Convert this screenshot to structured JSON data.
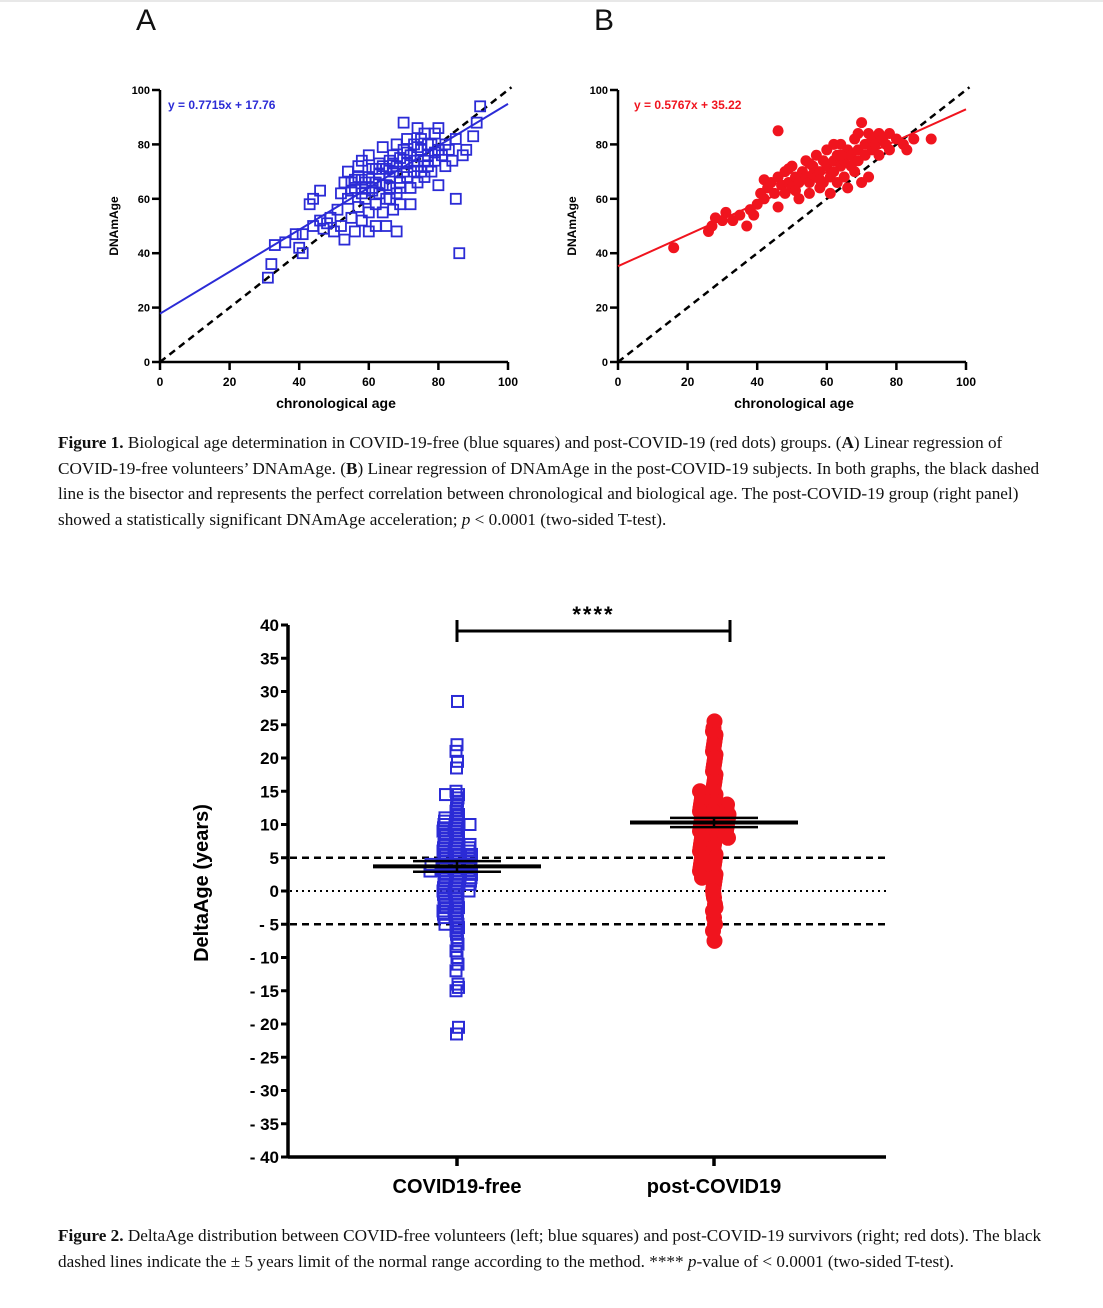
{
  "figure1": {
    "caption": {
      "label": "Figure 1.",
      "part1": " Biological age determination in COVID-19-free (blue squares) and post-COVID-19 (red dots) groups. (",
      "a": "A",
      "part2": ") Linear regression of COVID-19-free volunteers’ DNAmAge. (",
      "b": "B",
      "part3": ") Linear regression of DNAmAge in the post-COVID-19 subjects. In both graphs, the black dashed line is the bisector and represents the perfect correlation between chronological and biological age. The post-COVID-19 group (right panel) showed a statistically significant DNAmAge acceleration; ",
      "p": "p",
      "part4": " < 0.0001 (two-sided T-test)."
    }
  },
  "figure2": {
    "caption": {
      "label": "Figure 2.",
      "part1": " DeltaAge distribution between COVID-free volunteers (left; blue squares) and post-COVID-19 survivors (right; red dots). The black dashed lines indicate the ± 5 years limit of the normal range according to the method. **** ",
      "p": "p",
      "part2": "-value of < 0.0001 (two-sided T-test)."
    }
  },
  "colors": {
    "blue": "#2b2bd6",
    "red": "#f0141e",
    "black": "#000000"
  },
  "chart_data": [
    {
      "type": "scatter",
      "panel_label": "A",
      "xlabel": "chronological age",
      "ylabel": "DNAmAge",
      "xlim": [
        0,
        100
      ],
      "ylim": [
        0,
        100
      ],
      "xticks": [
        "0",
        "20",
        "40",
        "60",
        "80",
        "100"
      ],
      "yticks": [
        "0",
        "20",
        "40",
        "60",
        "80",
        "100"
      ],
      "marker": "open-square",
      "color": "#2b2bd6",
      "regression": {
        "label": "y = 0.7715x + 17.76",
        "slope": 0.7715,
        "intercept": 17.76
      },
      "bisector": {
        "slope": 1,
        "intercept": 0,
        "style": "dashed"
      },
      "points": [
        [
          31,
          31
        ],
        [
          32,
          36
        ],
        [
          33,
          43
        ],
        [
          36,
          44
        ],
        [
          39,
          47
        ],
        [
          40,
          42
        ],
        [
          41,
          40
        ],
        [
          41,
          47
        ],
        [
          43,
          58
        ],
        [
          44,
          60
        ],
        [
          44,
          50
        ],
        [
          46,
          52
        ],
        [
          46,
          63
        ],
        [
          47,
          49
        ],
        [
          48,
          51
        ],
        [
          49,
          53
        ],
        [
          50,
          48
        ],
        [
          51,
          56
        ],
        [
          52,
          50
        ],
        [
          52,
          62
        ],
        [
          53,
          66
        ],
        [
          53,
          45
        ],
        [
          54,
          70
        ],
        [
          54,
          60
        ],
        [
          55,
          53
        ],
        [
          55,
          66
        ],
        [
          56,
          48
        ],
        [
          56,
          64
        ],
        [
          57,
          72
        ],
        [
          57,
          57
        ],
        [
          57,
          68
        ],
        [
          58,
          62
        ],
        [
          58,
          52
        ],
        [
          58,
          74
        ],
        [
          59,
          66
        ],
        [
          59,
          60
        ],
        [
          60,
          55
        ],
        [
          60,
          68
        ],
        [
          60,
          76
        ],
        [
          60,
          48
        ],
        [
          61,
          64
        ],
        [
          61,
          71
        ],
        [
          62,
          58
        ],
        [
          62,
          66
        ],
        [
          62,
          50
        ],
        [
          63,
          62
        ],
        [
          63,
          69
        ],
        [
          63,
          73
        ],
        [
          64,
          55
        ],
        [
          64,
          65
        ],
        [
          64,
          79
        ],
        [
          65,
          71
        ],
        [
          65,
          60
        ],
        [
          65,
          50
        ],
        [
          66,
          68
        ],
        [
          66,
          74
        ],
        [
          66,
          64
        ],
        [
          67,
          76
        ],
        [
          67,
          56
        ],
        [
          67,
          70
        ],
        [
          68,
          62
        ],
        [
          68,
          72
        ],
        [
          68,
          80
        ],
        [
          68,
          48
        ],
        [
          69,
          66
        ],
        [
          69,
          75
        ],
        [
          69,
          58
        ],
        [
          70,
          70
        ],
        [
          70,
          78
        ],
        [
          70,
          88
        ],
        [
          71,
          73
        ],
        [
          71,
          68
        ],
        [
          71,
          82
        ],
        [
          72,
          64
        ],
        [
          72,
          76
        ],
        [
          72,
          58
        ],
        [
          73,
          70
        ],
        [
          73,
          80
        ],
        [
          73,
          74
        ],
        [
          74,
          72
        ],
        [
          74,
          86
        ],
        [
          74,
          66
        ],
        [
          75,
          78
        ],
        [
          75,
          70
        ],
        [
          75,
          82
        ],
        [
          76,
          74
        ],
        [
          76,
          84
        ],
        [
          76,
          68
        ],
        [
          77,
          76
        ],
        [
          77,
          72
        ],
        [
          78,
          80
        ],
        [
          78,
          70
        ],
        [
          79,
          74
        ],
        [
          79,
          84
        ],
        [
          80,
          78
        ],
        [
          80,
          65
        ],
        [
          80,
          86
        ],
        [
          81,
          76
        ],
        [
          82,
          80
        ],
        [
          82,
          72
        ],
        [
          83,
          78
        ],
        [
          84,
          74
        ],
        [
          85,
          82
        ],
        [
          85,
          60
        ],
        [
          86,
          40
        ],
        [
          87,
          76
        ],
        [
          88,
          78
        ],
        [
          90,
          83
        ],
        [
          91,
          88
        ],
        [
          92,
          94
        ],
        [
          55,
          63
        ],
        [
          58,
          67
        ],
        [
          61,
          63
        ],
        [
          66,
          60
        ],
        [
          69,
          64
        ],
        [
          64,
          72
        ],
        [
          62,
          71
        ],
        [
          59,
          64
        ],
        [
          56,
          67
        ],
        [
          74,
          79
        ],
        [
          77,
          80
        ],
        [
          79,
          77
        ],
        [
          71,
          77
        ],
        [
          67,
          73
        ],
        [
          65,
          65
        ]
      ]
    },
    {
      "type": "scatter",
      "panel_label": "B",
      "xlabel": "chronological age",
      "ylabel": "DNAmAge",
      "xlim": [
        0,
        100
      ],
      "ylim": [
        0,
        100
      ],
      "xticks": [
        "0",
        "20",
        "40",
        "60",
        "80",
        "100"
      ],
      "yticks": [
        "0",
        "20",
        "40",
        "60",
        "80",
        "100"
      ],
      "marker": "filled-circle",
      "color": "#f0141e",
      "regression": {
        "label": "y = 0.5767x + 35.22",
        "slope": 0.5767,
        "intercept": 35.22
      },
      "bisector": {
        "slope": 1,
        "intercept": 0,
        "style": "dashed"
      },
      "points": [
        [
          16,
          42
        ],
        [
          26,
          48
        ],
        [
          27,
          50
        ],
        [
          28,
          53
        ],
        [
          30,
          52
        ],
        [
          31,
          55
        ],
        [
          33,
          52
        ],
        [
          35,
          54
        ],
        [
          37,
          50
        ],
        [
          38,
          56
        ],
        [
          39,
          54
        ],
        [
          40,
          58
        ],
        [
          41,
          62
        ],
        [
          42,
          60
        ],
        [
          42,
          67
        ],
        [
          43,
          64
        ],
        [
          44,
          66
        ],
        [
          45,
          62
        ],
        [
          46,
          68
        ],
        [
          46,
          57
        ],
        [
          47,
          65
        ],
        [
          48,
          70
        ],
        [
          48,
          62
        ],
        [
          49,
          66
        ],
        [
          50,
          64
        ],
        [
          50,
          72
        ],
        [
          51,
          68
        ],
        [
          52,
          66
        ],
        [
          52,
          60
        ],
        [
          53,
          70
        ],
        [
          54,
          68
        ],
        [
          54,
          74
        ],
        [
          55,
          66
        ],
        [
          55,
          62
        ],
        [
          56,
          72
        ],
        [
          56,
          69
        ],
        [
          57,
          68
        ],
        [
          57,
          76
        ],
        [
          58,
          70
        ],
        [
          58,
          64
        ],
        [
          59,
          74
        ],
        [
          59,
          66
        ],
        [
          60,
          72
        ],
        [
          60,
          78
        ],
        [
          61,
          68
        ],
        [
          61,
          62
        ],
        [
          62,
          74
        ],
        [
          62,
          70
        ],
        [
          63,
          76
        ],
        [
          63,
          66
        ],
        [
          64,
          72
        ],
        [
          64,
          80
        ],
        [
          65,
          74
        ],
        [
          65,
          68
        ],
        [
          66,
          78
        ],
        [
          66,
          64
        ],
        [
          67,
          76
        ],
        [
          67,
          72
        ],
        [
          68,
          82
        ],
        [
          68,
          70
        ],
        [
          69,
          78
        ],
        [
          69,
          74
        ],
        [
          70,
          88
        ],
        [
          70,
          66
        ],
        [
          71,
          80
        ],
        [
          71,
          76
        ],
        [
          72,
          84
        ],
        [
          72,
          68
        ],
        [
          73,
          82
        ],
        [
          73,
          78
        ],
        [
          74,
          80
        ],
        [
          75,
          76
        ],
        [
          75,
          84
        ],
        [
          76,
          82
        ],
        [
          77,
          80
        ],
        [
          78,
          84
        ],
        [
          78,
          78
        ],
        [
          80,
          82
        ],
        [
          82,
          80
        ],
        [
          83,
          78
        ],
        [
          85,
          82
        ],
        [
          90,
          82
        ],
        [
          46,
          85
        ],
        [
          49,
          71
        ],
        [
          55,
          73
        ],
        [
          51,
          63
        ],
        [
          58,
          67
        ],
        [
          62,
          80
        ],
        [
          64,
          76
        ],
        [
          69,
          84
        ]
      ]
    },
    {
      "type": "scatter",
      "subtype": "dot-plot",
      "ylabel": "DeltaAge (years)",
      "categories": [
        "COVID19-free",
        "post-COVID19"
      ],
      "ylim": [
        -40,
        40
      ],
      "yticks": [
        "40",
        "35",
        "30",
        "25",
        "20",
        "15",
        "10",
        "5",
        "0",
        "- 5",
        "- 10",
        "- 15",
        "- 20",
        "- 25",
        "- 30",
        "- 35",
        "- 40"
      ],
      "reference_lines": [
        {
          "y": 5,
          "style": "dashed"
        },
        {
          "y": 0,
          "style": "dotted"
        },
        {
          "y": -5,
          "style": "dashed"
        }
      ],
      "significance": {
        "label": "****",
        "between": [
          "COVID19-free",
          "post-COVID19"
        ]
      },
      "series": [
        {
          "name": "COVID19-free",
          "marker": "open-square",
          "color": "#2b2bd6",
          "mean": 3.7,
          "sem": 0.8,
          "values": [
            28.5,
            22,
            21,
            19.5,
            18.5,
            15,
            14.5,
            14.5,
            14,
            13.5,
            13,
            12.5,
            12,
            11.5,
            11,
            11,
            10.5,
            10.5,
            10,
            10,
            10,
            9.5,
            9.5,
            9,
            9,
            8.5,
            8.5,
            8,
            8,
            7.5,
            7.5,
            7,
            7,
            7,
            6.5,
            6.5,
            6.5,
            6,
            6,
            6,
            5.5,
            5.5,
            5.5,
            5,
            5,
            5,
            4.5,
            4.5,
            4.5,
            4,
            4,
            4,
            4,
            3.5,
            3.5,
            3.5,
            3,
            3,
            3,
            3,
            2.5,
            2.5,
            2.5,
            2,
            2,
            2,
            1.5,
            1.5,
            1.5,
            1,
            1,
            1,
            0.5,
            0.5,
            0,
            0,
            0,
            -0.5,
            -0.5,
            -1,
            -1,
            -1.5,
            -1.5,
            -2,
            -2,
            -2.5,
            -2.5,
            -3,
            -3,
            -3.5,
            -3.5,
            -4,
            -4,
            -4.5,
            -5,
            -5,
            -5.5,
            -6,
            -6.5,
            -7,
            -7.5,
            -8,
            -9,
            -10,
            -11,
            -12,
            -14,
            -14.5,
            -15,
            -20.5,
            -21.5
          ]
        },
        {
          "name": "post-COVID19",
          "marker": "filled-circle",
          "color": "#f0141e",
          "mean": 10.3,
          "sem": 0.7,
          "values": [
            25.5,
            24.5,
            24,
            23.5,
            23,
            22.5,
            22,
            21.5,
            21,
            20.5,
            20,
            19.5,
            19,
            18.5,
            18,
            17.5,
            17,
            16.5,
            16,
            15.5,
            15,
            15,
            14.5,
            14.5,
            14,
            14,
            13.5,
            13.5,
            13,
            13,
            13,
            12.5,
            12.5,
            12.5,
            12,
            12,
            12,
            11.5,
            11.5,
            11.5,
            11,
            11,
            11,
            10.5,
            10.5,
            10.5,
            10,
            10,
            10,
            9.5,
            9.5,
            9.5,
            9,
            9,
            9,
            8.5,
            8.5,
            8,
            8,
            8,
            7.5,
            7.5,
            7,
            7,
            6.5,
            6.5,
            6,
            6,
            5.5,
            5.5,
            5,
            5,
            4.5,
            4.5,
            4,
            4,
            3.5,
            3.5,
            3,
            3,
            2.5,
            2.5,
            2,
            2,
            1.5,
            1,
            0.5,
            0,
            -0.5,
            -1,
            -2,
            -2.5,
            -3,
            -4,
            -5,
            -6,
            -7.5
          ]
        }
      ]
    }
  ]
}
